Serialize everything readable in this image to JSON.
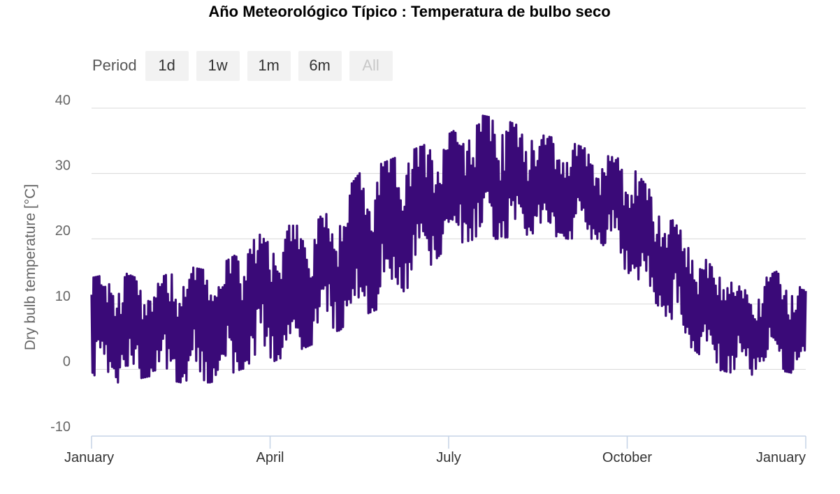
{
  "chart_data": {
    "type": "line",
    "title": "Año Meteorológico Típico : Temperatura de bulbo seco",
    "xlabel": "",
    "ylabel": "Dry bulb temperature [°C]",
    "ylim": [
      -10,
      40
    ],
    "yticks": [
      "-10",
      "0",
      "10",
      "20",
      "30",
      "40"
    ],
    "xticks": [
      "January",
      "April",
      "July",
      "October",
      "January"
    ],
    "grid": true,
    "line_color": "#3a0a78",
    "series": [
      {
        "x": [
          "Jan 1",
          "Jan 15",
          "Feb 1",
          "Feb 15",
          "Mar 1",
          "Mar 15",
          "Apr 1",
          "Apr 15",
          "May 1",
          "May 15",
          "Jun 1",
          "Jun 15",
          "Jul 1",
          "Jul 15",
          "Aug 1",
          "Aug 15",
          "Sep 1",
          "Sep 15",
          "Oct 1",
          "Oct 15",
          "Nov 1",
          "Nov 15",
          "Dec 1",
          "Dec 15",
          "Dec 31"
        ],
        "min": [
          -2,
          -2,
          -1,
          -2,
          -2,
          0,
          1,
          3,
          5,
          8,
          10,
          14,
          19,
          20,
          20,
          21,
          20,
          20,
          15,
          10,
          4,
          0,
          -1,
          0,
          -1
        ],
        "max": [
          14,
          15,
          13,
          16,
          15,
          18,
          22,
          22,
          24,
          30,
          32,
          34,
          36,
          39,
          38,
          36,
          35,
          33,
          32,
          26,
          20,
          15,
          12,
          15,
          12
        ]
      }
    ]
  },
  "range_selector": {
    "label": "Period",
    "buttons": [
      "1d",
      "1w",
      "1m",
      "6m",
      "All"
    ]
  }
}
